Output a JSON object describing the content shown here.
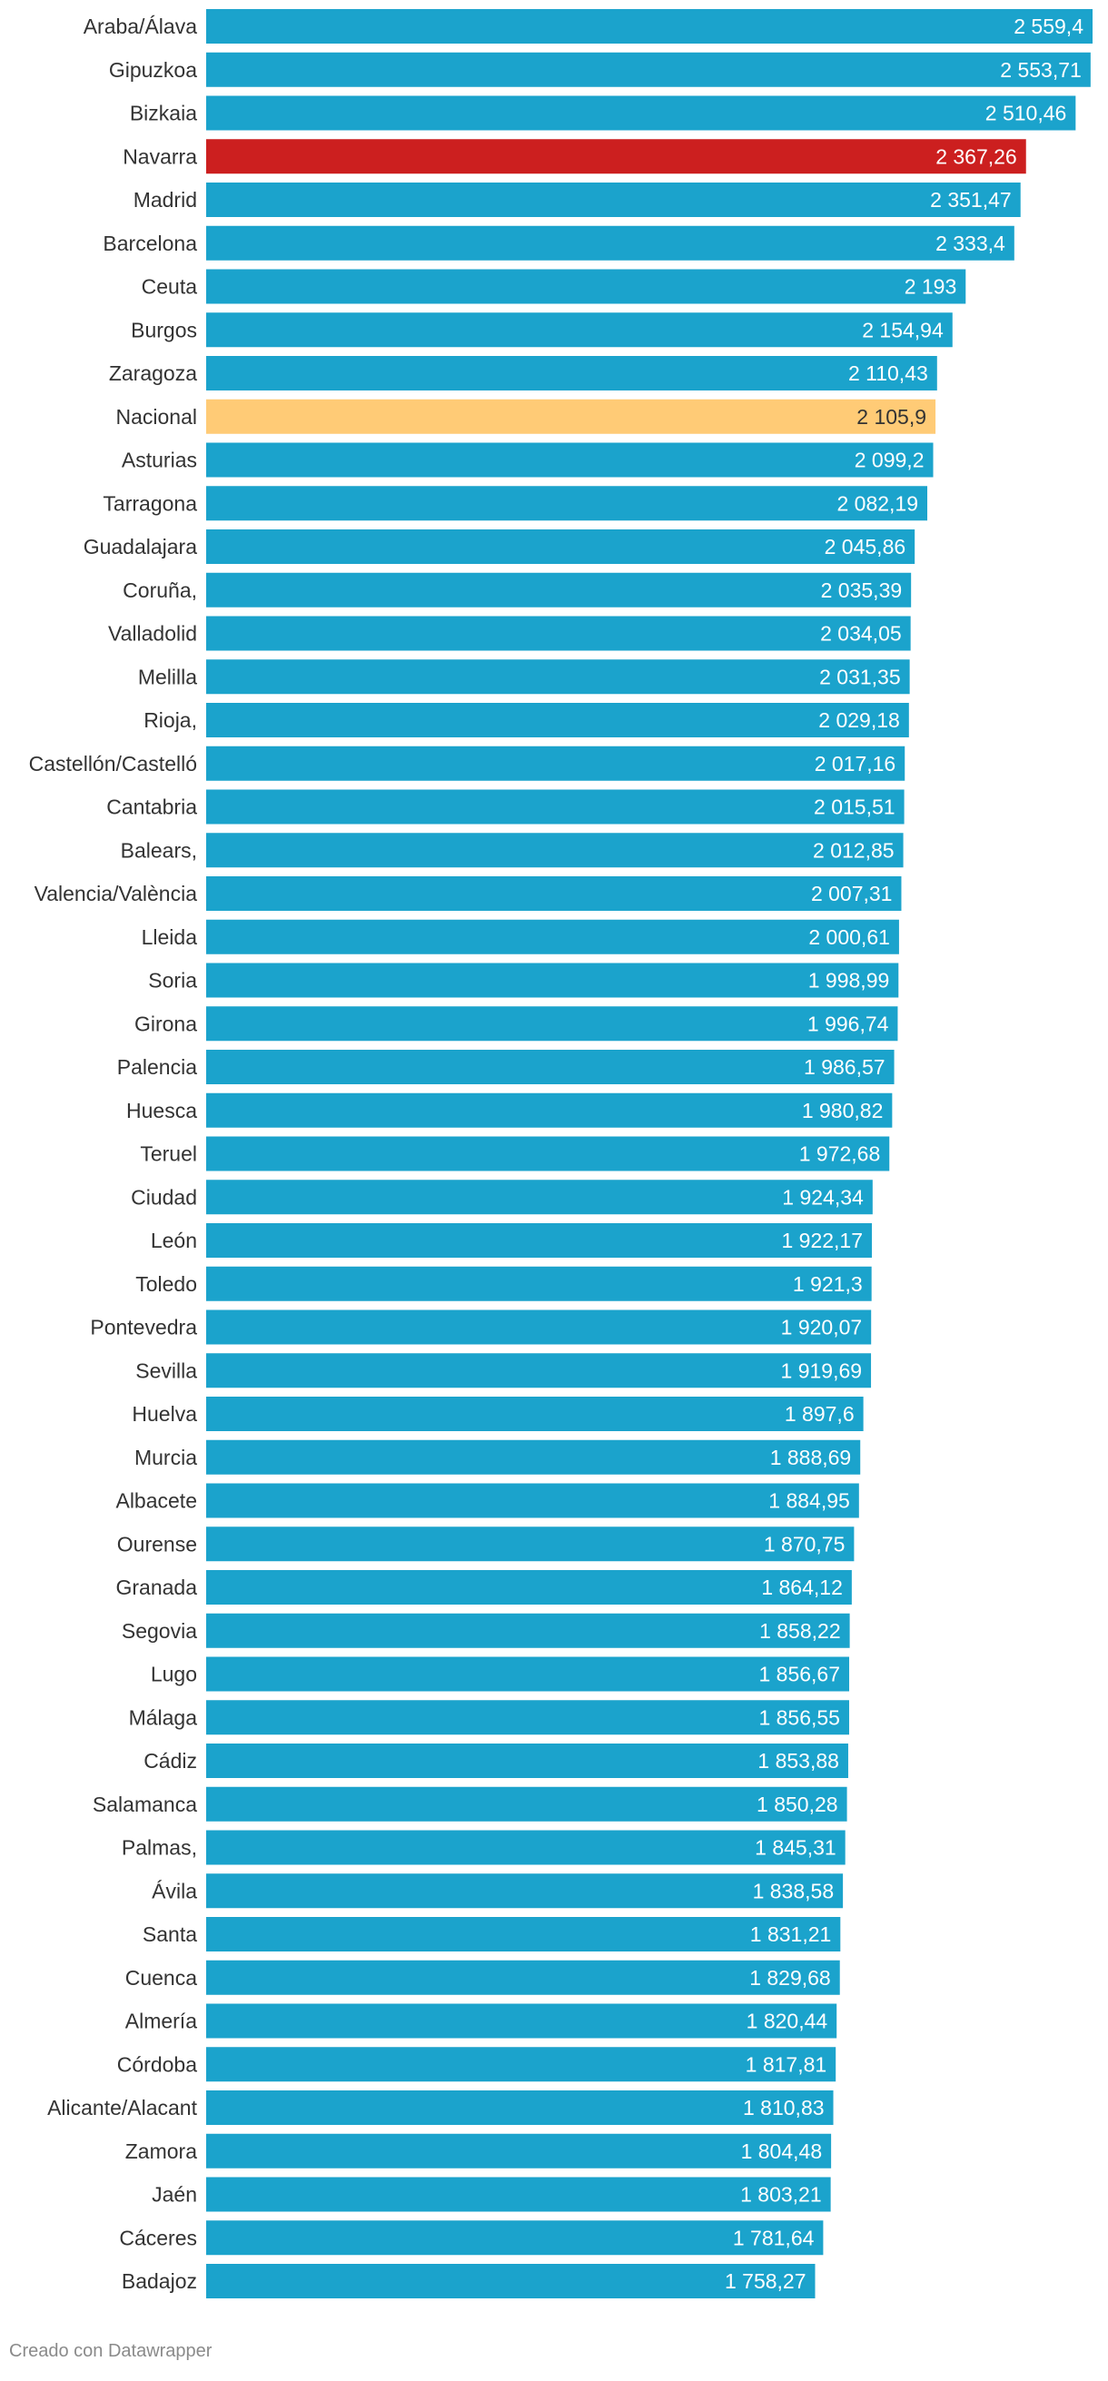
{
  "chart_data": {
    "type": "bar",
    "orientation": "horizontal",
    "title": "",
    "xlabel": "",
    "ylabel": "",
    "xlim": [
      0,
      2559.4
    ],
    "colors": {
      "default": "#1ba3cc",
      "highlight": "#cc1f1f",
      "national": "#ffcb76",
      "label_light": "#ffffff",
      "label_dark": "#333333"
    },
    "highlights": {
      "Navarra": "highlight",
      "Nacional": "national"
    },
    "categories": [
      "Araba/Álava",
      "Gipuzkoa",
      "Bizkaia",
      "Navarra",
      "Madrid",
      "Barcelona",
      "Ceuta",
      "Burgos",
      "Zaragoza",
      "Nacional",
      "Asturias",
      "Tarragona",
      "Guadalajara",
      "Coruña,",
      "Valladolid",
      "Melilla",
      "Rioja,",
      "Castellón/Castelló",
      "Cantabria",
      "Balears,",
      "Valencia/València",
      "Lleida",
      "Soria",
      "Girona",
      "Palencia",
      "Huesca",
      "Teruel",
      "Ciudad",
      "León",
      "Toledo",
      "Pontevedra",
      "Sevilla",
      "Huelva",
      "Murcia",
      "Albacete",
      "Ourense",
      "Granada",
      "Segovia",
      "Lugo",
      "Málaga",
      "Cádiz",
      "Salamanca",
      "Palmas,",
      "Ávila",
      "Santa",
      "Cuenca",
      "Almería",
      "Córdoba",
      "Alicante/Alacant",
      "Zamora",
      "Jaén",
      "Cáceres",
      "Badajoz"
    ],
    "values": [
      2559.4,
      2553.71,
      2510.46,
      2367.26,
      2351.47,
      2333.4,
      2193,
      2154.94,
      2110.43,
      2105.9,
      2099.2,
      2082.19,
      2045.86,
      2035.39,
      2034.05,
      2031.35,
      2029.18,
      2017.16,
      2015.51,
      2012.85,
      2007.31,
      2000.61,
      1998.99,
      1996.74,
      1986.57,
      1980.82,
      1972.68,
      1924.34,
      1922.17,
      1921.3,
      1920.07,
      1919.69,
      1897.6,
      1888.69,
      1884.95,
      1870.75,
      1864.12,
      1858.22,
      1856.67,
      1856.55,
      1853.88,
      1850.28,
      1845.31,
      1838.58,
      1831.21,
      1829.68,
      1820.44,
      1817.81,
      1810.83,
      1804.48,
      1803.21,
      1781.64,
      1758.27
    ],
    "value_labels": [
      "2 559,4",
      "2 553,71",
      "2 510,46",
      "2 367,26",
      "2 351,47",
      "2 333,4",
      "2 193",
      "2 154,94",
      "2 110,43",
      "2 105,9",
      "2 099,2",
      "2 082,19",
      "2 045,86",
      "2 035,39",
      "2 034,05",
      "2 031,35",
      "2 029,18",
      "2 017,16",
      "2 015,51",
      "2 012,85",
      "2 007,31",
      "2 000,61",
      "1 998,99",
      "1 996,74",
      "1 986,57",
      "1 980,82",
      "1 972,68",
      "1 924,34",
      "1 922,17",
      "1 921,3",
      "1 920,07",
      "1 919,69",
      "1 897,6",
      "1 888,69",
      "1 884,95",
      "1 870,75",
      "1 864,12",
      "1 858,22",
      "1 856,67",
      "1 856,55",
      "1 853,88",
      "1 850,28",
      "1 845,31",
      "1 838,58",
      "1 831,21",
      "1 829,68",
      "1 820,44",
      "1 817,81",
      "1 810,83",
      "1 804,48",
      "1 803,21",
      "1 781,64",
      "1 758,27"
    ]
  },
  "footer": {
    "credit": "Creado con Datawrapper"
  }
}
